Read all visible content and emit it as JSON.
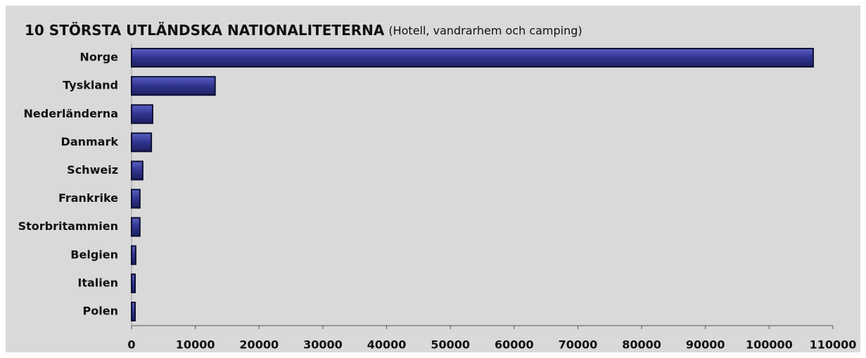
{
  "chart_data": {
    "type": "hbar",
    "title": "10 STÖRSTA UTLÄNDSKA NATIONALITETERNA",
    "subtitle": "(Hotell, vandrarhem och camping)",
    "categories": [
      "Norge",
      "Tyskland",
      "Nederländerna",
      "Danmark",
      "Schweiz",
      "Frankrike",
      "Storbritammien",
      "Belgien",
      "Italien",
      "Polen"
    ],
    "values": [
      106900,
      13100,
      3300,
      3100,
      1750,
      1300,
      1300,
      650,
      550,
      550
    ],
    "color": "#30348f",
    "xlim": [
      0,
      110000
    ],
    "xticks": [
      0,
      10000,
      20000,
      30000,
      40000,
      50000,
      60000,
      70000,
      80000,
      90000,
      100000,
      110000
    ],
    "grid": false
  }
}
